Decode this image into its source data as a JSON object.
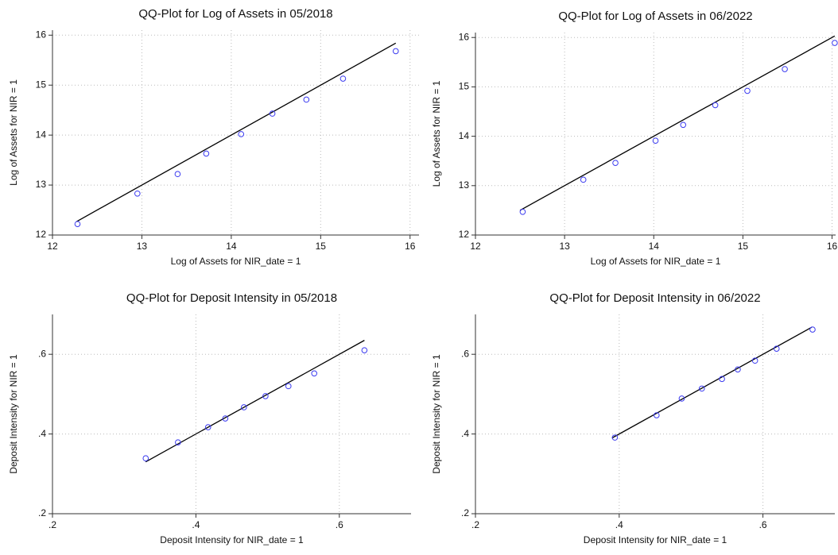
{
  "chart_data": [
    {
      "type": "scatter",
      "title": "QQ-Plot for Log of Assets in 05/2018",
      "xlabel": "Log of Assets for NIR_date = 1",
      "ylabel": "Log of Assets for NIR = 1",
      "x": [
        12.28,
        12.95,
        13.4,
        13.72,
        14.11,
        14.46,
        14.84,
        15.25,
        15.84
      ],
      "y": [
        12.22,
        12.83,
        13.22,
        13.63,
        14.02,
        14.43,
        14.71,
        15.13,
        15.68
      ],
      "line_x": [
        12.27,
        15.84
      ],
      "line_y": [
        12.27,
        15.84
      ],
      "xlim": [
        12,
        16.1
      ],
      "ylim": [
        12,
        16.1
      ],
      "xticks": [
        12,
        13,
        14,
        15,
        16
      ],
      "yticks": [
        12,
        13,
        14,
        15,
        16
      ],
      "grid": true,
      "color": "#3b3bf0",
      "line_color": "#000000"
    },
    {
      "type": "scatter",
      "title": "QQ-Plot for Log of Assets in 06/2022",
      "xlabel": "Log of Assets for NIR_date = 1",
      "ylabel": "Log of Assets for NIR = 1",
      "x": [
        12.53,
        13.21,
        13.57,
        14.02,
        14.33,
        14.69,
        15.05,
        15.47,
        16.03
      ],
      "y": [
        12.47,
        13.12,
        13.46,
        13.91,
        14.23,
        14.63,
        14.92,
        15.36,
        15.89
      ],
      "line_x": [
        12.5,
        16.03
      ],
      "line_y": [
        12.5,
        16.03
      ],
      "xlim": [
        12,
        16.04
      ],
      "ylim": [
        12,
        16.1
      ],
      "xticks": [
        12,
        13,
        14,
        15,
        16
      ],
      "yticks": [
        12,
        13,
        14,
        15,
        16
      ],
      "grid": true,
      "color": "#3b3bf0",
      "line_color": "#000000"
    },
    {
      "type": "scatter",
      "title": "QQ-Plot for Deposit Intensity in 05/2018",
      "xlabel": "Deposit Intensity for NIR_date = 1",
      "ylabel": "Deposit Intensity for NIR = 1",
      "x": [
        0.33,
        0.375,
        0.417,
        0.441,
        0.467,
        0.497,
        0.529,
        0.565,
        0.635
      ],
      "y": [
        0.339,
        0.379,
        0.417,
        0.439,
        0.467,
        0.495,
        0.52,
        0.552,
        0.61
      ],
      "line_x": [
        0.33,
        0.635
      ],
      "line_y": [
        0.33,
        0.635
      ],
      "xlim": [
        0.2,
        0.7
      ],
      "ylim": [
        0.2,
        0.7
      ],
      "xticks": [
        {
          "value": 0.2,
          "label": ".2"
        },
        {
          "value": 0.4,
          "label": ".4"
        },
        {
          "value": 0.6,
          "label": ".6"
        }
      ],
      "yticks": [
        {
          "value": 0.2,
          "label": ".2"
        },
        {
          "value": 0.4,
          "label": ".4"
        },
        {
          "value": 0.6,
          "label": ".6"
        }
      ],
      "grid": true,
      "color": "#3b3bf0",
      "line_color": "#000000"
    },
    {
      "type": "scatter",
      "title": "QQ-Plot for Deposit Intensity in 06/2022",
      "xlabel": "Deposit Intensity for NIR_date = 1",
      "ylabel": "Deposit Intensity for NIR = 1",
      "x": [
        0.394,
        0.452,
        0.487,
        0.515,
        0.543,
        0.565,
        0.589,
        0.619,
        0.669
      ],
      "y": [
        0.391,
        0.447,
        0.489,
        0.514,
        0.538,
        0.562,
        0.584,
        0.614,
        0.662
      ],
      "line_x": [
        0.39,
        0.668
      ],
      "line_y": [
        0.39,
        0.668
      ],
      "xlim": [
        0.2,
        0.7
      ],
      "ylim": [
        0.2,
        0.7
      ],
      "xticks": [
        {
          "value": 0.2,
          "label": ".2"
        },
        {
          "value": 0.4,
          "label": ".4"
        },
        {
          "value": 0.6,
          "label": ".6"
        }
      ],
      "yticks": [
        {
          "value": 0.2,
          "label": ".2"
        },
        {
          "value": 0.4,
          "label": ".4"
        },
        {
          "value": 0.6,
          "label": ".6"
        }
      ],
      "grid": true,
      "color": "#3b3bf0",
      "line_color": "#000000"
    }
  ]
}
